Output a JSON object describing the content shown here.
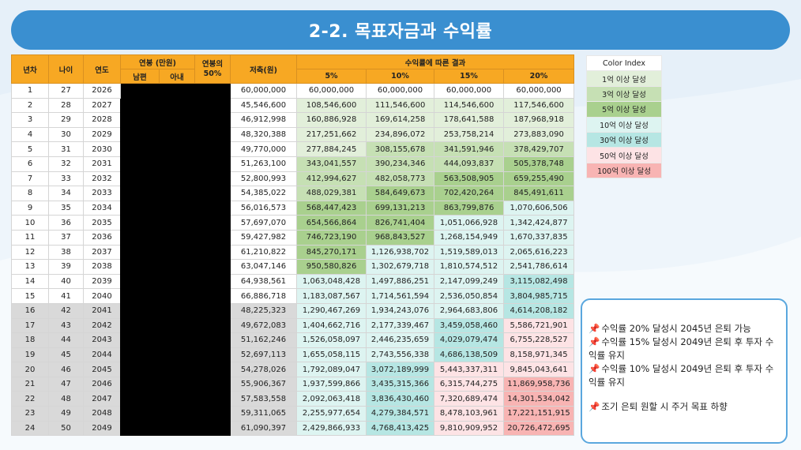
{
  "title": "2-2. 목표자금과 수익률",
  "table": {
    "headers": {
      "period": "년차",
      "age": "나이",
      "year": "연도",
      "salary": "연봉 (만원)",
      "husband": "남편",
      "wife": "아내",
      "salary_pct": "연봉의 50%",
      "savings": "저축(원)",
      "result": "수익률에 따른 결과",
      "r5": "5%",
      "r10": "10%",
      "r15": "15%",
      "r20": "20%"
    },
    "rows": [
      {
        "n": "1",
        "age": "27",
        "year": "2026",
        "save": "60,000,000",
        "v": [
          "60,000,000",
          "60,000,000",
          "60,000,000",
          "60,000,000"
        ],
        "c": [
          "c0",
          "c0",
          "c0",
          "c0"
        ]
      },
      {
        "n": "2",
        "age": "28",
        "year": "2027",
        "save": "45,546,600",
        "v": [
          "108,546,600",
          "111,546,600",
          "114,546,600",
          "117,546,600"
        ],
        "c": [
          "c1",
          "c1",
          "c1",
          "c1"
        ]
      },
      {
        "n": "3",
        "age": "29",
        "year": "2028",
        "save": "46,912,998",
        "v": [
          "160,886,928",
          "169,614,258",
          "178,641,588",
          "187,968,918"
        ],
        "c": [
          "c1",
          "c1",
          "c1",
          "c1"
        ]
      },
      {
        "n": "4",
        "age": "30",
        "year": "2029",
        "save": "48,320,388",
        "v": [
          "217,251,662",
          "234,896,072",
          "253,758,214",
          "273,883,090"
        ],
        "c": [
          "c1",
          "c1",
          "c1",
          "c1"
        ]
      },
      {
        "n": "5",
        "age": "31",
        "year": "2030",
        "save": "49,770,000",
        "v": [
          "277,884,245",
          "308,155,678",
          "341,591,946",
          "378,429,707"
        ],
        "c": [
          "c1",
          "c3",
          "c3",
          "c3"
        ]
      },
      {
        "n": "6",
        "age": "32",
        "year": "2031",
        "save": "51,263,100",
        "v": [
          "343,041,557",
          "390,234,346",
          "444,093,837",
          "505,378,748"
        ],
        "c": [
          "c3",
          "c3",
          "c3",
          "c5"
        ]
      },
      {
        "n": "7",
        "age": "33",
        "year": "2032",
        "save": "52,800,993",
        "v": [
          "412,994,627",
          "482,058,773",
          "563,508,905",
          "659,255,490"
        ],
        "c": [
          "c3",
          "c3",
          "c5",
          "c5"
        ]
      },
      {
        "n": "8",
        "age": "34",
        "year": "2033",
        "save": "54,385,022",
        "v": [
          "488,029,381",
          "584,649,673",
          "702,420,264",
          "845,491,611"
        ],
        "c": [
          "c3",
          "c5",
          "c5",
          "c5"
        ]
      },
      {
        "n": "9",
        "age": "35",
        "year": "2034",
        "save": "56,016,573",
        "v": [
          "568,447,423",
          "699,131,213",
          "863,799,876",
          "1,070,606,506"
        ],
        "c": [
          "c5",
          "c5",
          "c5",
          "c10"
        ]
      },
      {
        "n": "10",
        "age": "36",
        "year": "2035",
        "save": "57,697,070",
        "v": [
          "654,566,864",
          "826,741,404",
          "1,051,066,928",
          "1,342,424,877"
        ],
        "c": [
          "c5",
          "c5",
          "c10",
          "c10"
        ]
      },
      {
        "n": "11",
        "age": "37",
        "year": "2036",
        "save": "59,427,982",
        "v": [
          "746,723,190",
          "968,843,527",
          "1,268,154,949",
          "1,670,337,835"
        ],
        "c": [
          "c5",
          "c5",
          "c10",
          "c10"
        ]
      },
      {
        "n": "12",
        "age": "38",
        "year": "2037",
        "save": "61,210,822",
        "v": [
          "845,270,171",
          "1,126,938,702",
          "1,519,589,013",
          "2,065,616,223"
        ],
        "c": [
          "c5",
          "c10",
          "c10",
          "c10"
        ]
      },
      {
        "n": "13",
        "age": "39",
        "year": "2038",
        "save": "63,047,146",
        "v": [
          "950,580,826",
          "1,302,679,718",
          "1,810,574,512",
          "2,541,786,614"
        ],
        "c": [
          "c5",
          "c10",
          "c10",
          "c10"
        ]
      },
      {
        "n": "14",
        "age": "40",
        "year": "2039",
        "save": "64,938,561",
        "v": [
          "1,063,048,428",
          "1,497,886,251",
          "2,147,099,249",
          "3,115,082,498"
        ],
        "c": [
          "c10",
          "c10",
          "c10",
          "c30"
        ]
      },
      {
        "n": "15",
        "age": "41",
        "year": "2040",
        "save": "66,886,718",
        "v": [
          "1,183,087,567",
          "1,714,561,594",
          "2,536,050,854",
          "3,804,985,715"
        ],
        "c": [
          "c10",
          "c10",
          "c10",
          "c30"
        ]
      },
      {
        "n": "16",
        "age": "42",
        "year": "2041",
        "save": "48,225,323",
        "v": [
          "1,290,467,269",
          "1,934,243,076",
          "2,964,683,806",
          "4,614,208,182"
        ],
        "c": [
          "c10",
          "c10",
          "c10",
          "c30"
        ],
        "gray": true
      },
      {
        "n": "17",
        "age": "43",
        "year": "2042",
        "save": "49,672,083",
        "v": [
          "1,404,662,716",
          "2,177,339,467",
          "3,459,058,460",
          "5,586,721,901"
        ],
        "c": [
          "c10",
          "c10",
          "c30",
          "c50"
        ],
        "gray": true
      },
      {
        "n": "18",
        "age": "44",
        "year": "2043",
        "save": "51,162,246",
        "v": [
          "1,526,058,097",
          "2,446,235,659",
          "4,029,079,474",
          "6,755,228,527"
        ],
        "c": [
          "c10",
          "c10",
          "c30",
          "c50"
        ],
        "gray": true
      },
      {
        "n": "19",
        "age": "45",
        "year": "2044",
        "save": "52,697,113",
        "v": [
          "1,655,058,115",
          "2,743,556,338",
          "4,686,138,509",
          "8,158,971,345"
        ],
        "c": [
          "c10",
          "c10",
          "c30",
          "c50"
        ],
        "gray": true
      },
      {
        "n": "20",
        "age": "46",
        "year": "2045",
        "save": "54,278,026",
        "v": [
          "1,792,089,047",
          "3,072,189,999",
          "5,443,337,311",
          "9,845,043,641"
        ],
        "c": [
          "c10",
          "c30",
          "c50",
          "c50"
        ],
        "gray": true
      },
      {
        "n": "21",
        "age": "47",
        "year": "2046",
        "save": "55,906,367",
        "v": [
          "1,937,599,866",
          "3,435,315,366",
          "6,315,744,275",
          "11,869,958,736"
        ],
        "c": [
          "c10",
          "c30",
          "c50",
          "c100"
        ],
        "gray": true
      },
      {
        "n": "22",
        "age": "48",
        "year": "2047",
        "save": "57,583,558",
        "v": [
          "2,092,063,418",
          "3,836,430,460",
          "7,320,689,474",
          "14,301,534,042"
        ],
        "c": [
          "c10",
          "c30",
          "c50",
          "c100"
        ],
        "gray": true
      },
      {
        "n": "23",
        "age": "49",
        "year": "2048",
        "save": "59,311,065",
        "v": [
          "2,255,977,654",
          "4,279,384,571",
          "8,478,103,961",
          "17,221,151,915"
        ],
        "c": [
          "c10",
          "c30",
          "c50",
          "c100"
        ],
        "gray": true
      },
      {
        "n": "24",
        "age": "50",
        "year": "2049",
        "save": "61,090,397",
        "v": [
          "2,429,866,933",
          "4,768,413,425",
          "9,810,909,952",
          "20,726,472,695"
        ],
        "c": [
          "c10",
          "c30",
          "c50",
          "c100"
        ],
        "gray": true
      }
    ]
  },
  "legend": {
    "header": "Color Index",
    "items": [
      {
        "label": "1억 이상 달성",
        "color": "#e2efda"
      },
      {
        "label": "3억 이상 달성",
        "color": "#c6e0b4"
      },
      {
        "label": "5억 이상 달성",
        "color": "#a9d08e"
      },
      {
        "label": "10억 이상 달성",
        "color": "#ddf4f1"
      },
      {
        "label": "30억 이상 달성",
        "color": "#b6e6e3"
      },
      {
        "label": "50억 이상 달성",
        "color": "#fde3e5"
      },
      {
        "label": "100억 이상 달성",
        "color": "#f8b4b3"
      }
    ]
  },
  "notes": {
    "pin_icon": "pushpin-icon",
    "items": [
      "수익률 20% 달성시 2045년 은퇴 가능",
      "수익률 15% 달성시 2049년 은퇴 후 투자 수익률 유지",
      "수익률 10% 달성시 2049년 은퇴 후 투자 수익률 유지",
      "조기 은퇴 원할 시 주거 목표 하향"
    ]
  },
  "colors": {
    "title_bar": "#3a8fd0",
    "header": "#f7a823",
    "gray_rows": "#d9d9d9",
    "notes_border": "#5aa7de"
  }
}
